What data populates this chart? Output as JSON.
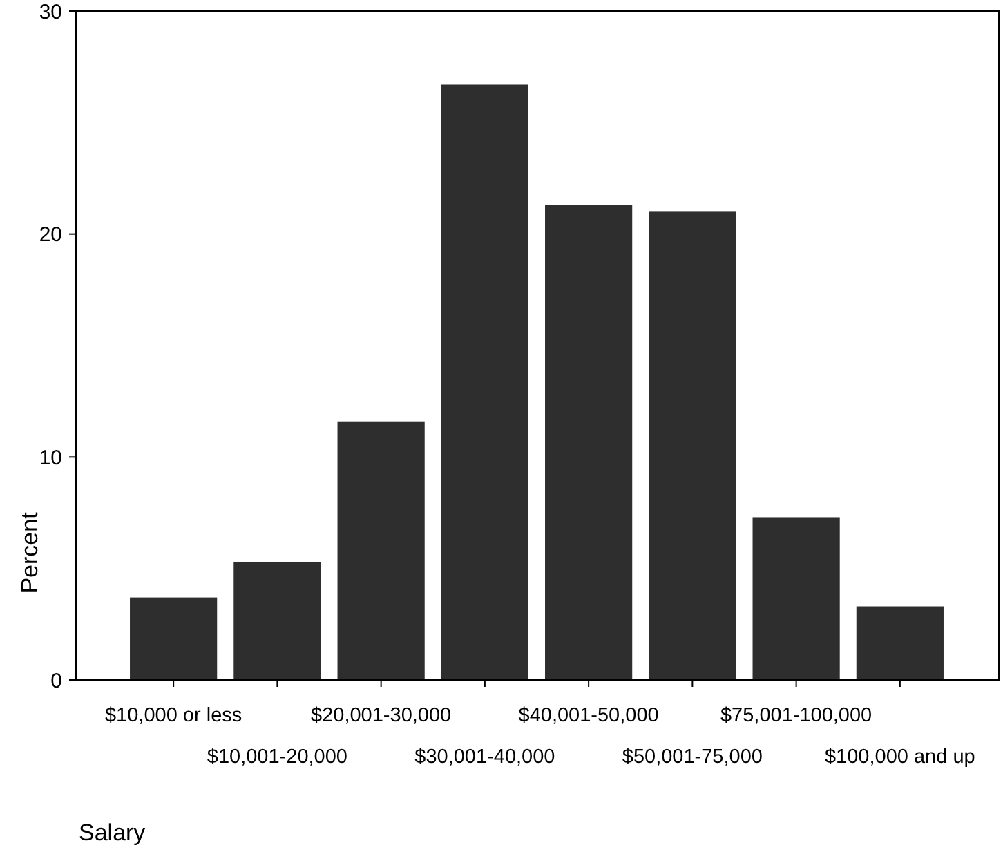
{
  "chart_data": {
    "type": "bar",
    "xlabel": "Salary",
    "ylabel": "Percent",
    "categories": [
      "$10,000 or less",
      "$10,001-20,000",
      "$20,001-30,000",
      "$30,001-40,000",
      "$40,001-50,000",
      "$50,001-75,000",
      "$75,001-100,000",
      "$100,000 and up"
    ],
    "values": [
      3.7,
      5.3,
      11.6,
      26.7,
      21.3,
      21.0,
      7.3,
      3.3
    ],
    "color": "#2e2e2e",
    "ylim": [
      0,
      30
    ],
    "yticks": [
      0,
      10,
      20,
      30
    ],
    "grid": false
  }
}
